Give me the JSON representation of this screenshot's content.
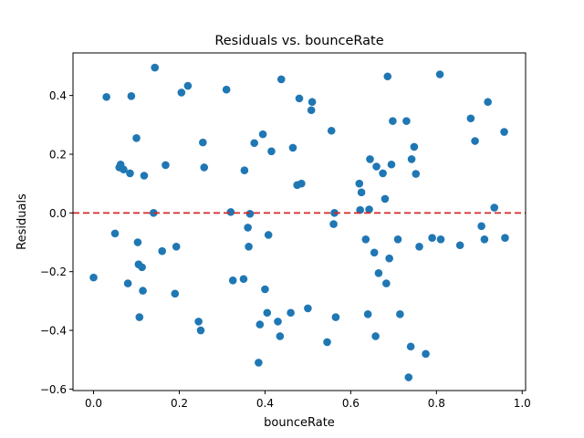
{
  "chart_data": {
    "type": "scatter",
    "title": "Residuals vs. bounceRate",
    "xlabel": "bounceRate",
    "ylabel": "Residuals",
    "xlim": [
      -0.048,
      1.008
    ],
    "ylim": [
      -0.605,
      0.545
    ],
    "xticks": [
      "0.0",
      "0.2",
      "0.4",
      "0.6",
      "0.8",
      "1.0"
    ],
    "xtick_values": [
      0.0,
      0.2,
      0.4,
      0.6,
      0.8,
      1.0
    ],
    "yticks": [
      "−0.6",
      "−0.4",
      "−0.2",
      "0.0",
      "0.2",
      "0.4"
    ],
    "ytick_values": [
      -0.6,
      -0.4,
      -0.2,
      0.0,
      0.2,
      0.4
    ],
    "grid": false,
    "reference_line": {
      "y": 0.0,
      "color": "#d62728",
      "style": "dashed"
    },
    "marker_color": "#1f77b4",
    "points": [
      [
        0.0,
        -0.22
      ],
      [
        0.03,
        0.395
      ],
      [
        0.05,
        -0.07
      ],
      [
        0.06,
        0.155
      ],
      [
        0.063,
        0.165
      ],
      [
        0.07,
        0.148
      ],
      [
        0.08,
        -0.24
      ],
      [
        0.085,
        0.135
      ],
      [
        0.088,
        0.398
      ],
      [
        0.1,
        0.255
      ],
      [
        0.103,
        -0.1
      ],
      [
        0.105,
        -0.175
      ],
      [
        0.107,
        -0.355
      ],
      [
        0.113,
        -0.185
      ],
      [
        0.115,
        -0.265
      ],
      [
        0.118,
        0.127
      ],
      [
        0.14,
        0.0
      ],
      [
        0.143,
        0.495
      ],
      [
        0.16,
        -0.13
      ],
      [
        0.168,
        0.163
      ],
      [
        0.19,
        -0.275
      ],
      [
        0.193,
        -0.115
      ],
      [
        0.205,
        0.41
      ],
      [
        0.22,
        0.433
      ],
      [
        0.245,
        -0.37
      ],
      [
        0.25,
        -0.4
      ],
      [
        0.255,
        0.24
      ],
      [
        0.258,
        0.155
      ],
      [
        0.31,
        0.42
      ],
      [
        0.32,
        0.003
      ],
      [
        0.325,
        -0.23
      ],
      [
        0.35,
        -0.225
      ],
      [
        0.352,
        0.145
      ],
      [
        0.36,
        -0.05
      ],
      [
        0.362,
        -0.115
      ],
      [
        0.365,
        -0.003
      ],
      [
        0.375,
        0.238
      ],
      [
        0.385,
        -0.51
      ],
      [
        0.388,
        -0.38
      ],
      [
        0.395,
        0.268
      ],
      [
        0.4,
        -0.26
      ],
      [
        0.405,
        -0.34
      ],
      [
        0.408,
        -0.075
      ],
      [
        0.415,
        0.21
      ],
      [
        0.43,
        -0.37
      ],
      [
        0.435,
        -0.42
      ],
      [
        0.438,
        0.455
      ],
      [
        0.46,
        -0.34
      ],
      [
        0.465,
        0.222
      ],
      [
        0.475,
        0.095
      ],
      [
        0.48,
        0.39
      ],
      [
        0.485,
        0.1
      ],
      [
        0.5,
        -0.325
      ],
      [
        0.508,
        0.35
      ],
      [
        0.51,
        0.378
      ],
      [
        0.545,
        -0.44
      ],
      [
        0.555,
        0.28
      ],
      [
        0.56,
        -0.038
      ],
      [
        0.562,
        0.0
      ],
      [
        0.565,
        -0.355
      ],
      [
        0.62,
        0.1
      ],
      [
        0.622,
        0.01
      ],
      [
        0.625,
        0.07
      ],
      [
        0.635,
        -0.09
      ],
      [
        0.64,
        -0.345
      ],
      [
        0.643,
        0.012
      ],
      [
        0.645,
        0.183
      ],
      [
        0.655,
        -0.135
      ],
      [
        0.658,
        -0.42
      ],
      [
        0.66,
        0.158
      ],
      [
        0.665,
        -0.205
      ],
      [
        0.675,
        0.135
      ],
      [
        0.68,
        0.048
      ],
      [
        0.683,
        -0.24
      ],
      [
        0.686,
        0.465
      ],
      [
        0.69,
        -0.155
      ],
      [
        0.695,
        0.165
      ],
      [
        0.698,
        0.313
      ],
      [
        0.71,
        -0.09
      ],
      [
        0.715,
        -0.345
      ],
      [
        0.73,
        0.313
      ],
      [
        0.735,
        -0.56
      ],
      [
        0.74,
        -0.455
      ],
      [
        0.742,
        0.183
      ],
      [
        0.748,
        0.225
      ],
      [
        0.752,
        0.133
      ],
      [
        0.76,
        -0.115
      ],
      [
        0.775,
        -0.48
      ],
      [
        0.79,
        -0.085
      ],
      [
        0.808,
        0.472
      ],
      [
        0.81,
        -0.09
      ],
      [
        0.855,
        -0.11
      ],
      [
        0.88,
        0.322
      ],
      [
        0.89,
        0.245
      ],
      [
        0.905,
        -0.045
      ],
      [
        0.912,
        -0.09
      ],
      [
        0.92,
        0.378
      ],
      [
        0.935,
        0.018
      ],
      [
        0.958,
        0.276
      ],
      [
        0.96,
        -0.085
      ]
    ]
  }
}
